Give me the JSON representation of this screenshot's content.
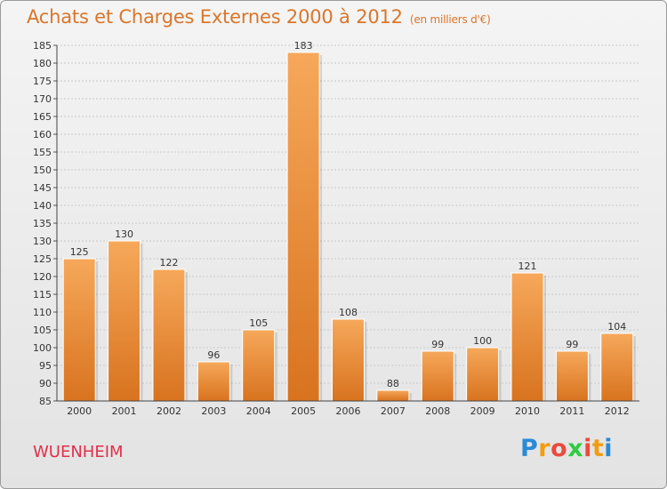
{
  "chart_data": {
    "type": "bar",
    "title": "Achats et Charges Externes 2000 à 2012",
    "subtitle": "(en milliers d'€)",
    "categories": [
      "2000",
      "2001",
      "2002",
      "2003",
      "2004",
      "2005",
      "2006",
      "2007",
      "2008",
      "2009",
      "2010",
      "2011",
      "2012"
    ],
    "values": [
      125,
      130,
      122,
      96,
      105,
      183,
      108,
      88,
      99,
      100,
      121,
      99,
      104
    ],
    "ylim": [
      85,
      185
    ],
    "yticks": [
      85,
      90,
      95,
      100,
      105,
      110,
      115,
      120,
      125,
      130,
      135,
      140,
      145,
      150,
      155,
      160,
      165,
      170,
      175,
      180,
      185
    ],
    "grid": true,
    "legend": "none",
    "colors": {
      "bar_top": "#f6a85a",
      "bar_bottom": "#d8731f",
      "title": "#d9762b",
      "commune": "#e0304a"
    }
  },
  "commune": "WUENHEIM",
  "logo": {
    "letters": [
      "P",
      "r",
      "o",
      "x",
      "i",
      "t",
      "i"
    ],
    "colors": [
      "#2a8ad6",
      "#f39c12",
      "#e74c3c",
      "#2ecc40",
      "#e74c3c",
      "#f39c12",
      "#2a8ad6"
    ]
  }
}
